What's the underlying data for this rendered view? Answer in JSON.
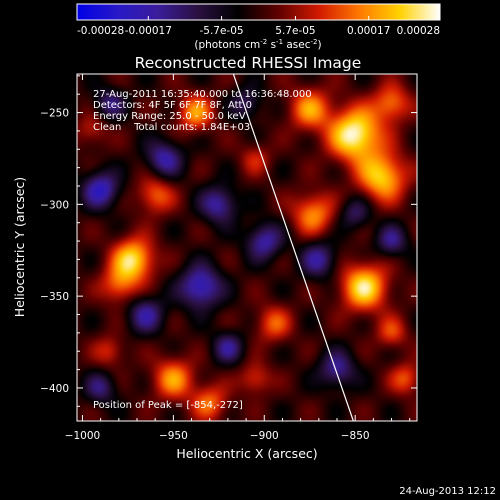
{
  "chart_data": {
    "type": "heatmap",
    "title": "Reconstructed RHESSI Image",
    "xlabel": "Heliocentric X (arcsec)",
    "ylabel": "Heliocentric Y (arcsec)",
    "xlim": [
      -1003,
      -816
    ],
    "ylim": [
      -418,
      -229
    ],
    "x_ticks": [
      -1000,
      -950,
      -900,
      -850
    ],
    "x_tick_labels": [
      "−1000",
      "−950",
      "−900",
      "−850"
    ],
    "y_ticks": [
      -250,
      -300,
      -350,
      -400
    ],
    "y_tick_labels": [
      "−250",
      "−300",
      "−350",
      "−400"
    ],
    "colorbar": {
      "range": [
        -0.00028,
        0.00028
      ],
      "ticks": [
        -0.00028,
        -0.00017,
        -5.7e-05,
        5.7e-05,
        0.00017,
        0.00028
      ],
      "tick_labels": [
        "-0.00028",
        "-0.00017",
        "-5.7e-05",
        "5.7e-05",
        "0.00017",
        "0.00028"
      ],
      "label_pre": "(photons cm",
      "label_e1": "-2",
      "label_mid": " s",
      "label_e2": "-1",
      "label_mid2": " asec",
      "label_e3": "-2",
      "label_post": ")",
      "colors": [
        "#0000e6",
        "#2818c8",
        "#3a1d9a",
        "#2a1040",
        "#000000",
        "#600000",
        "#d21a00",
        "#ff7800",
        "#ffd200",
        "#ffffff"
      ]
    },
    "annotations": [
      "27-Aug-2011 16:35:40.000 to 16:36:48.000",
      "Detectors: 4F 5F 6F 7F 8F, Att 0",
      "Energy Range: 25.0 - 50.0 keV",
      "Clean    Total counts: 1.84E+03"
    ],
    "peak_label": "Position of Peak = [-854,-272]",
    "limb_line": [
      [
        -917,
        -229
      ],
      [
        -851,
        -418
      ]
    ],
    "features": [
      {
        "x": -850,
        "y": -262,
        "amp": 1.0,
        "s": 10
      },
      {
        "x": -835,
        "y": -285,
        "amp": 0.8,
        "s": 9
      },
      {
        "x": -875,
        "y": -248,
        "amp": 0.6,
        "s": 8
      },
      {
        "x": -830,
        "y": -245,
        "amp": 0.55,
        "s": 7
      },
      {
        "x": -873,
        "y": -305,
        "amp": 0.6,
        "s": 8
      },
      {
        "x": -845,
        "y": -345,
        "amp": 0.85,
        "s": 9
      },
      {
        "x": -972,
        "y": -330,
        "amp": 0.85,
        "s": 8
      },
      {
        "x": -980,
        "y": -344,
        "amp": 0.5,
        "s": 7
      },
      {
        "x": -938,
        "y": -250,
        "amp": 0.6,
        "s": 7
      },
      {
        "x": -960,
        "y": -295,
        "amp": 0.5,
        "s": 7
      },
      {
        "x": -895,
        "y": -365,
        "amp": 0.45,
        "s": 7
      },
      {
        "x": -950,
        "y": -395,
        "amp": 0.6,
        "s": 8
      },
      {
        "x": -930,
        "y": -408,
        "amp": 0.5,
        "s": 7
      },
      {
        "x": -985,
        "y": -380,
        "amp": 0.35,
        "s": 6
      },
      {
        "x": -905,
        "y": -395,
        "amp": 0.4,
        "s": 6
      },
      {
        "x": -822,
        "y": -395,
        "amp": 0.45,
        "s": 6
      },
      {
        "x": -830,
        "y": -370,
        "amp": 0.4,
        "s": 6
      },
      {
        "x": -905,
        "y": -275,
        "amp": 0.3,
        "s": 6
      },
      {
        "x": -995,
        "y": -260,
        "amp": 0.3,
        "s": 6
      },
      {
        "x": -990,
        "y": -292,
        "amp": -0.7,
        "s": 7
      },
      {
        "x": -955,
        "y": -275,
        "amp": -0.6,
        "s": 7
      },
      {
        "x": -925,
        "y": -300,
        "amp": -0.6,
        "s": 7
      },
      {
        "x": -935,
        "y": -345,
        "amp": -0.75,
        "s": 8
      },
      {
        "x": -900,
        "y": -320,
        "amp": -0.6,
        "s": 7
      },
      {
        "x": -870,
        "y": -330,
        "amp": -0.55,
        "s": 7
      },
      {
        "x": -965,
        "y": -360,
        "amp": -0.55,
        "s": 7
      },
      {
        "x": -920,
        "y": -378,
        "amp": -0.5,
        "s": 6
      },
      {
        "x": -990,
        "y": -400,
        "amp": -0.45,
        "s": 6
      },
      {
        "x": -860,
        "y": -390,
        "amp": -0.55,
        "s": 7
      },
      {
        "x": -830,
        "y": -320,
        "amp": -0.5,
        "s": 6
      },
      {
        "x": -850,
        "y": -305,
        "amp": -0.4,
        "s": 6
      },
      {
        "x": -985,
        "y": -245,
        "amp": -0.45,
        "s": 6
      },
      {
        "x": -910,
        "y": -245,
        "amp": -0.4,
        "s": 6
      }
    ]
  },
  "footer": {
    "date": "24-Aug-2013 12:12"
  }
}
